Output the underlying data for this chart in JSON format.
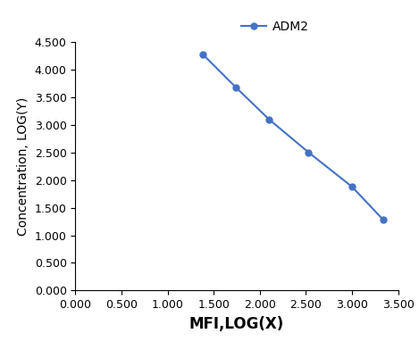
{
  "x": [
    1.38,
    1.74,
    2.1,
    2.53,
    3.0,
    3.34
  ],
  "y": [
    4.28,
    3.68,
    3.1,
    2.5,
    1.88,
    1.28
  ],
  "line_color": "#4472C4",
  "marker": "o",
  "marker_size": 5,
  "line_width": 1.5,
  "legend_label": "ADM2",
  "xlabel": "MFI,LOG(X)",
  "ylabel": "Concentration, LOG(Y)",
  "xlim": [
    0.0,
    3.5
  ],
  "ylim": [
    0.0,
    4.5
  ],
  "xticks": [
    0.0,
    0.5,
    1.0,
    1.5,
    2.0,
    2.5,
    3.0,
    3.5
  ],
  "yticks": [
    0.0,
    0.5,
    1.0,
    1.5,
    2.0,
    2.5,
    3.0,
    3.5,
    4.0,
    4.5
  ],
  "xlabel_fontsize": 12,
  "ylabel_fontsize": 10,
  "tick_fontsize": 9,
  "legend_fontsize": 10,
  "background_color": "#ffffff",
  "grid": false
}
